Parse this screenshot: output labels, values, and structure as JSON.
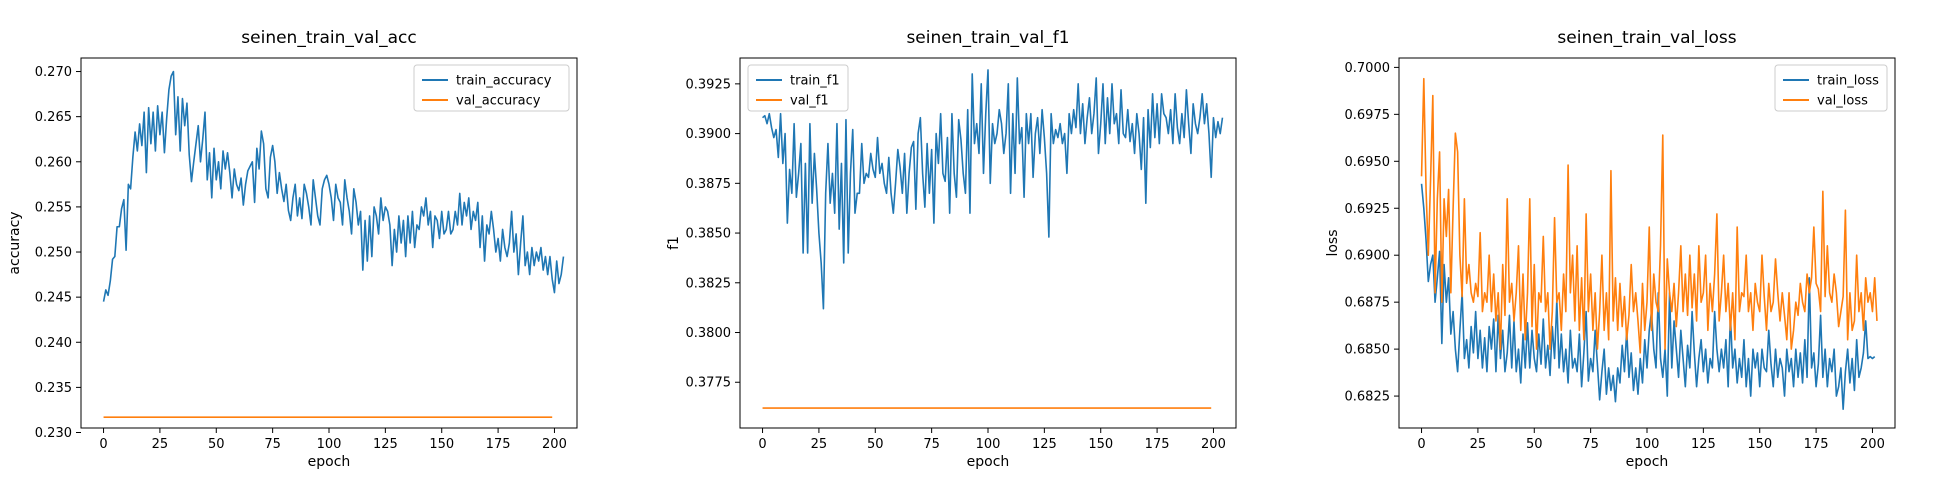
{
  "colors": {
    "train": "#1f77b4",
    "val": "#ff7f0e"
  },
  "chart_data": [
    {
      "type": "line",
      "title": "seinen_train_val_acc",
      "xlabel": "epoch",
      "ylabel": "accuracy",
      "xlim": [
        -10,
        210
      ],
      "ylim": [
        0.2305,
        0.2715
      ],
      "xticks": [
        0,
        25,
        50,
        75,
        100,
        125,
        150,
        175,
        200
      ],
      "yticks": [
        0.23,
        0.235,
        0.24,
        0.245,
        0.25,
        0.255,
        0.26,
        0.265,
        0.27
      ],
      "tick_decimals": 3,
      "grid": false,
      "legend": "top-right",
      "series": [
        {
          "name": "train_accuracy",
          "key": "train",
          "values": [
            0.2445,
            0.2458,
            0.2452,
            0.2468,
            0.2492,
            0.2495,
            0.2528,
            0.2528,
            0.2548,
            0.2558,
            0.2502,
            0.2575,
            0.257,
            0.2605,
            0.2633,
            0.2612,
            0.2642,
            0.2618,
            0.2655,
            0.2588,
            0.266,
            0.262,
            0.2655,
            0.2612,
            0.2662,
            0.263,
            0.2655,
            0.261,
            0.2648,
            0.268,
            0.2695,
            0.27,
            0.263,
            0.2672,
            0.2612,
            0.267,
            0.264,
            0.2665,
            0.2608,
            0.2578,
            0.26,
            0.262,
            0.264,
            0.26,
            0.2625,
            0.2655,
            0.258,
            0.261,
            0.256,
            0.2615,
            0.258,
            0.26,
            0.257,
            0.2612,
            0.2592,
            0.261,
            0.2588,
            0.256,
            0.2592,
            0.2575,
            0.2568,
            0.2582,
            0.2552,
            0.2575,
            0.259,
            0.2595,
            0.26,
            0.2555,
            0.2615,
            0.2592,
            0.2634,
            0.262,
            0.257,
            0.256,
            0.2605,
            0.2618,
            0.26,
            0.2565,
            0.2588,
            0.257,
            0.2556,
            0.2575,
            0.2546,
            0.2535,
            0.256,
            0.2575,
            0.254,
            0.256,
            0.2537,
            0.2575,
            0.2565,
            0.255,
            0.253,
            0.258,
            0.256,
            0.254,
            0.253,
            0.257,
            0.258,
            0.2585,
            0.2575,
            0.256,
            0.2535,
            0.2575,
            0.256,
            0.2555,
            0.253,
            0.258,
            0.256,
            0.2545,
            0.252,
            0.257,
            0.2555,
            0.253,
            0.2545,
            0.248,
            0.2535,
            0.249,
            0.254,
            0.2495,
            0.255,
            0.254,
            0.252,
            0.256,
            0.2535,
            0.255,
            0.2545,
            0.253,
            0.2485,
            0.2525,
            0.25,
            0.254,
            0.251,
            0.2535,
            0.2495,
            0.254,
            0.251,
            0.2545,
            0.2505,
            0.253,
            0.2525,
            0.255,
            0.254,
            0.256,
            0.253,
            0.2545,
            0.2505,
            0.254,
            0.2535,
            0.2515,
            0.2545,
            0.252,
            0.2525,
            0.2545,
            0.252,
            0.2525,
            0.2545,
            0.253,
            0.2565,
            0.253,
            0.2555,
            0.254,
            0.256,
            0.2525,
            0.2545,
            0.2535,
            0.2555,
            0.2505,
            0.254,
            0.249,
            0.253,
            0.252,
            0.2545,
            0.2525,
            0.25,
            0.2515,
            0.249,
            0.2525,
            0.2505,
            0.2495,
            0.251,
            0.2545,
            0.25,
            0.252,
            0.2475,
            0.251,
            0.254,
            0.2485,
            0.25,
            0.2475,
            0.2505,
            0.2485,
            0.25,
            0.249,
            0.2505,
            0.248,
            0.2495,
            0.2475,
            0.2495,
            0.247,
            0.2455,
            0.249,
            0.2465,
            0.2475,
            0.2495
          ]
        },
        {
          "name": "val_accuracy",
          "key": "val",
          "constant": 0.2317
        }
      ]
    },
    {
      "type": "line",
      "title": "seinen_train_val_f1",
      "xlabel": "epoch",
      "ylabel": "f1",
      "xlim": [
        -10,
        210
      ],
      "ylim": [
        0.3752,
        0.3938
      ],
      "xticks": [
        0,
        25,
        50,
        75,
        100,
        125,
        150,
        175,
        200
      ],
      "yticks": [
        0.3775,
        0.38,
        0.3825,
        0.385,
        0.3875,
        0.39,
        0.3925
      ],
      "tick_decimals": 4,
      "grid": false,
      "legend": "top-left",
      "series": [
        {
          "name": "train_f1",
          "key": "train",
          "values": [
            0.3908,
            0.3909,
            0.3905,
            0.391,
            0.3903,
            0.3898,
            0.3902,
            0.3888,
            0.391,
            0.3885,
            0.39,
            0.3855,
            0.3882,
            0.387,
            0.3905,
            0.3868,
            0.388,
            0.3895,
            0.384,
            0.3885,
            0.384,
            0.3905,
            0.3865,
            0.389,
            0.3872,
            0.385,
            0.3835,
            0.3812,
            0.387,
            0.3895,
            0.3865,
            0.388,
            0.386,
            0.3905,
            0.3852,
            0.3885,
            0.3835,
            0.3907,
            0.384,
            0.388,
            0.3902,
            0.386,
            0.387,
            0.387,
            0.3895,
            0.3875,
            0.388,
            0.3878,
            0.389,
            0.3882,
            0.3878,
            0.3898,
            0.388,
            0.3885,
            0.3875,
            0.387,
            0.3888,
            0.387,
            0.386,
            0.3875,
            0.3892,
            0.3883,
            0.387,
            0.389,
            0.386,
            0.388,
            0.3893,
            0.3896,
            0.3862,
            0.39,
            0.3908,
            0.388,
            0.3863,
            0.3895,
            0.387,
            0.3892,
            0.3855,
            0.39,
            0.3885,
            0.391,
            0.388,
            0.3876,
            0.3898,
            0.386,
            0.391,
            0.388,
            0.3868,
            0.3907,
            0.3897,
            0.388,
            0.387,
            0.3912,
            0.386,
            0.393,
            0.3895,
            0.3905,
            0.389,
            0.3925,
            0.388,
            0.391,
            0.3932,
            0.3875,
            0.3905,
            0.3895,
            0.39,
            0.3912,
            0.3905,
            0.389,
            0.39,
            0.3925,
            0.387,
            0.391,
            0.388,
            0.3928,
            0.3895,
            0.3903,
            0.3868,
            0.391,
            0.3895,
            0.391,
            0.3878,
            0.39,
            0.3908,
            0.389,
            0.3912,
            0.3898,
            0.388,
            0.3848,
            0.391,
            0.3895,
            0.3902,
            0.3898,
            0.3905,
            0.3895,
            0.39,
            0.388,
            0.391,
            0.39,
            0.3912,
            0.3903,
            0.3925,
            0.39,
            0.3915,
            0.3895,
            0.3908,
            0.3918,
            0.39,
            0.391,
            0.3928,
            0.389,
            0.3905,
            0.3925,
            0.3895,
            0.3918,
            0.39,
            0.3925,
            0.3905,
            0.391,
            0.3895,
            0.3922,
            0.39,
            0.3898,
            0.3912,
            0.3896,
            0.3905,
            0.389,
            0.391,
            0.39,
            0.3882,
            0.3908,
            0.3865,
            0.3912,
            0.3893,
            0.392,
            0.3898,
            0.3915,
            0.3895,
            0.392,
            0.391,
            0.3908,
            0.39,
            0.3912,
            0.3895,
            0.392,
            0.3903,
            0.3895,
            0.391,
            0.3898,
            0.3922,
            0.3905,
            0.389,
            0.3915,
            0.3905,
            0.39,
            0.3908,
            0.392,
            0.3905,
            0.3915,
            0.39,
            0.3878,
            0.3908,
            0.3898,
            0.3906,
            0.39,
            0.3908
          ]
        },
        {
          "name": "val_f1",
          "key": "val",
          "constant": 0.3762
        }
      ]
    },
    {
      "type": "line",
      "title": "seinen_train_val_loss",
      "xlabel": "epoch",
      "ylabel": "loss",
      "xlim": [
        -10,
        210
      ],
      "ylim": [
        0.6808,
        0.7005
      ],
      "xticks": [
        0,
        25,
        50,
        75,
        100,
        125,
        150,
        175,
        200
      ],
      "yticks": [
        0.6825,
        0.685,
        0.6875,
        0.69,
        0.6925,
        0.695,
        0.6975,
        0.7
      ],
      "tick_decimals": 4,
      "grid": false,
      "legend": "top-right",
      "series": [
        {
          "name": "train_loss",
          "key": "train",
          "values": [
            0.6938,
            0.6925,
            0.6908,
            0.6886,
            0.6895,
            0.69,
            0.6875,
            0.6888,
            0.6902,
            0.6853,
            0.6895,
            0.6875,
            0.6888,
            0.6858,
            0.687,
            0.685,
            0.6838,
            0.686,
            0.688,
            0.6845,
            0.6855,
            0.684,
            0.6862,
            0.6848,
            0.687,
            0.6845,
            0.686,
            0.684,
            0.6856,
            0.6838,
            0.6862,
            0.685,
            0.6866,
            0.6838,
            0.6868,
            0.6845,
            0.686,
            0.6838,
            0.6848,
            0.6868,
            0.684,
            0.6865,
            0.6838,
            0.685,
            0.6832,
            0.6858,
            0.684,
            0.6864,
            0.684,
            0.686,
            0.6845,
            0.6838,
            0.6858,
            0.6842,
            0.6866,
            0.684,
            0.6852,
            0.6836,
            0.6862,
            0.6845,
            0.6876,
            0.684,
            0.6858,
            0.6838,
            0.685,
            0.6832,
            0.686,
            0.684,
            0.6845,
            0.6838,
            0.6858,
            0.683,
            0.6848,
            0.687,
            0.6833,
            0.6845,
            0.6838,
            0.686,
            0.6842,
            0.6823,
            0.6838,
            0.685,
            0.6826,
            0.684,
            0.6828,
            0.6836,
            0.6822,
            0.684,
            0.6832,
            0.6852,
            0.6838,
            0.686,
            0.6835,
            0.6848,
            0.6828,
            0.684,
            0.6826,
            0.6845,
            0.6832,
            0.6855,
            0.684,
            0.686,
            0.687,
            0.685,
            0.684,
            0.688,
            0.6845,
            0.6835,
            0.685,
            0.6825,
            0.688,
            0.684,
            0.6865,
            0.685,
            0.6835,
            0.686,
            0.6845,
            0.683,
            0.6852,
            0.684,
            0.687,
            0.6848,
            0.683,
            0.6845,
            0.6855,
            0.6838,
            0.685,
            0.6832,
            0.6845,
            0.684,
            0.687,
            0.685,
            0.6838,
            0.685,
            0.684,
            0.6855,
            0.683,
            0.6868,
            0.684,
            0.685,
            0.6832,
            0.6845,
            0.6835,
            0.6855,
            0.683,
            0.6845,
            0.6825,
            0.685,
            0.684,
            0.6848,
            0.683,
            0.685,
            0.684,
            0.6838,
            0.686,
            0.6842,
            0.683,
            0.685,
            0.6835,
            0.6845,
            0.684,
            0.6825,
            0.685,
            0.6838,
            0.6845,
            0.683,
            0.685,
            0.6835,
            0.6848,
            0.6832,
            0.6855,
            0.6835,
            0.6888,
            0.684,
            0.6848,
            0.683,
            0.6842,
            0.6868,
            0.6835,
            0.685,
            0.683,
            0.6845,
            0.6838,
            0.685,
            0.6825,
            0.683,
            0.684,
            0.6818,
            0.6838,
            0.685,
            0.6832,
            0.6845,
            0.6828,
            0.6855,
            0.6835,
            0.684,
            0.6848,
            0.6865,
            0.6845,
            0.6846,
            0.6845,
            0.6846
          ]
        },
        {
          "name": "val_loss",
          "key": "val",
          "values": [
            0.6942,
            0.6994,
            0.6935,
            0.69,
            0.694,
            0.6985,
            0.688,
            0.693,
            0.6955,
            0.6875,
            0.693,
            0.691,
            0.6935,
            0.688,
            0.6925,
            0.6965,
            0.6955,
            0.69,
            0.6878,
            0.693,
            0.6885,
            0.6895,
            0.688,
            0.6875,
            0.6885,
            0.6878,
            0.6912,
            0.687,
            0.688,
            0.6875,
            0.69,
            0.687,
            0.689,
            0.6865,
            0.688,
            0.685,
            0.6895,
            0.6868,
            0.693,
            0.6875,
            0.6885,
            0.6865,
            0.688,
            0.6905,
            0.686,
            0.689,
            0.6855,
            0.688,
            0.693,
            0.6862,
            0.6895,
            0.685,
            0.688,
            0.6875,
            0.691,
            0.687,
            0.688,
            0.685,
            0.687,
            0.692,
            0.6875,
            0.688,
            0.686,
            0.689,
            0.687,
            0.6948,
            0.688,
            0.69,
            0.6865,
            0.6905,
            0.686,
            0.6888,
            0.6855,
            0.6922,
            0.687,
            0.689,
            0.686,
            0.688,
            0.685,
            0.687,
            0.69,
            0.686,
            0.688,
            0.6855,
            0.6945,
            0.6865,
            0.6888,
            0.686,
            0.6885,
            0.6862,
            0.6878,
            0.6855,
            0.6868,
            0.6895,
            0.687,
            0.688,
            0.6865,
            0.6848,
            0.6885,
            0.686,
            0.6875,
            0.6915,
            0.686,
            0.689,
            0.6875,
            0.687,
            0.6905,
            0.6964,
            0.685,
            0.6898,
            0.688,
            0.687,
            0.6885,
            0.6862,
            0.688,
            0.6905,
            0.687,
            0.689,
            0.6868,
            0.69,
            0.6872,
            0.689,
            0.6865,
            0.6905,
            0.6875,
            0.688,
            0.69,
            0.686,
            0.6885,
            0.687,
            0.689,
            0.6922,
            0.6865,
            0.688,
            0.69,
            0.687,
            0.6885,
            0.686,
            0.688,
            0.6855,
            0.6915,
            0.687,
            0.688,
            0.6878,
            0.69,
            0.687,
            0.688,
            0.686,
            0.6885,
            0.6875,
            0.687,
            0.69,
            0.6878,
            0.686,
            0.6885,
            0.687,
            0.6875,
            0.6898,
            0.688,
            0.6865,
            0.688,
            0.6868,
            0.6855,
            0.688,
            0.685,
            0.686,
            0.6875,
            0.6868,
            0.6885,
            0.6875,
            0.687,
            0.689,
            0.688,
            0.6888,
            0.6915,
            0.6885,
            0.6882,
            0.687,
            0.6934,
            0.6878,
            0.6905,
            0.688,
            0.6875,
            0.689,
            0.688,
            0.6862,
            0.687,
            0.6878,
            0.6924,
            0.6855,
            0.688,
            0.686,
            0.6865,
            0.69,
            0.687,
            0.688,
            0.686,
            0.6888,
            0.6875,
            0.688,
            0.687,
            0.6888,
            0.6865
          ]
        }
      ]
    }
  ]
}
